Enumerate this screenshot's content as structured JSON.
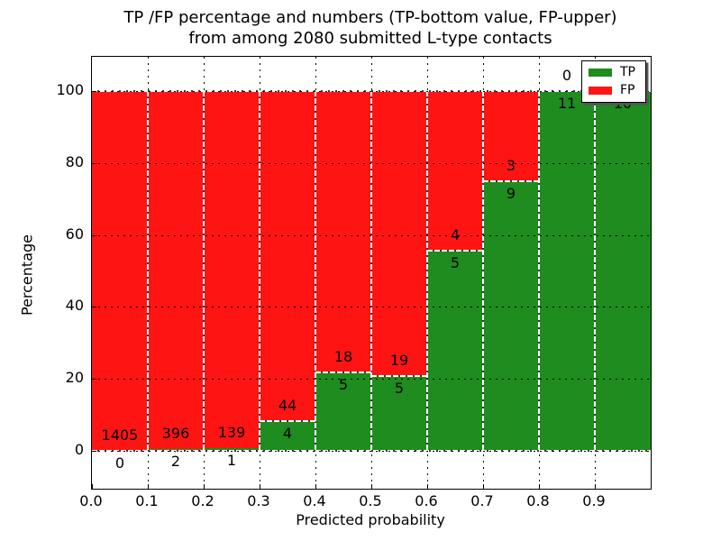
{
  "chart_data": {
    "type": "bar",
    "variant": "stacked_percentage_histogram",
    "title_line1": "TP /FP percentage and numbers (TP-bottom value, FP-upper)",
    "title_line2": "from among 2080 submitted L-type contacts",
    "xlabel": "Predicted probability",
    "ylabel": "Percentage",
    "xticks": [
      "0.0",
      "0.1",
      "0.2",
      "0.3",
      "0.4",
      "0.5",
      "0.6",
      "0.7",
      "0.8",
      "0.9"
    ],
    "yticks": [
      0,
      20,
      40,
      60,
      80,
      100
    ],
    "xlim": [
      0.0,
      1.0
    ],
    "grid": "dotted",
    "legend_position": "upper_right",
    "bin_width": 0.1,
    "bin_starts": [
      0.0,
      0.1,
      0.2,
      0.3,
      0.4,
      0.5,
      0.6,
      0.7,
      0.8,
      0.9
    ],
    "series": [
      {
        "name": "TP",
        "color": "#1e8c1e",
        "stack_position": "bottom",
        "counts": [
          0,
          2,
          1,
          4,
          5,
          5,
          5,
          9,
          11,
          10
        ],
        "pct": [
          0,
          0.5,
          0.71,
          8.33,
          21.74,
          20.83,
          55.56,
          75,
          100,
          100
        ]
      },
      {
        "name": "FP",
        "color": "#ff1414",
        "stack_position": "top",
        "counts": [
          1405,
          396,
          139,
          44,
          18,
          19,
          4,
          3,
          0,
          null
        ],
        "pct": [
          100,
          99.5,
          99.29,
          91.67,
          78.26,
          79.17,
          44.44,
          25,
          0,
          0
        ]
      }
    ],
    "bar_value_labels": {
      "tp": [
        "0",
        "2",
        "1",
        "4",
        "5",
        "5",
        "5",
        "9",
        "11",
        "10"
      ],
      "fp": [
        "1405",
        "396",
        "139",
        "44",
        "18",
        "19",
        "4",
        "3",
        "0",
        ""
      ]
    },
    "total_contacts": 2080
  }
}
